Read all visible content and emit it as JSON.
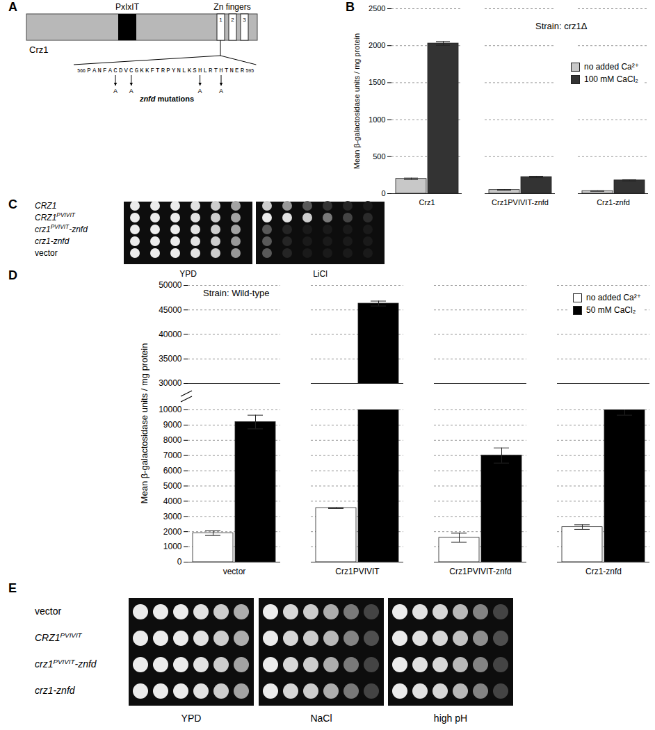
{
  "diagram": {
    "label": "A",
    "protein": "Crz1",
    "motif": "PxIxIT",
    "domain": "Zn fingers",
    "fingers": [
      "1",
      "2",
      "3"
    ],
    "sequence_start": 566,
    "sequence_end": 595,
    "sequence": "PANFACDVCGKKFTRPYNLKSHLRTHTNER",
    "mutated_positions": [
      571,
      574,
      587,
      591
    ],
    "substitution": "A",
    "mutation_label": "znfd mutations"
  },
  "chart_data": [
    {
      "panel": "B",
      "type": "bar",
      "annotations": [
        "Strain: crz1Δ"
      ],
      "ylabel": "Mean β-galactosidase units / mg protein",
      "categories": [
        "Crz1",
        "Crz1PVIVIT-znfd",
        "Crz1-znfd"
      ],
      "series": [
        {
          "name": "no added Ca²⁺",
          "color": "#c8c8c8",
          "values": [
            200,
            50,
            35
          ],
          "errors": [
            10,
            5,
            4
          ]
        },
        {
          "name": "100 mM CaCl₂",
          "color": "#333333",
          "values": [
            2030,
            225,
            180
          ],
          "errors": [
            25,
            10,
            8
          ]
        }
      ],
      "ylim": [
        0,
        2500
      ],
      "yticks": [
        0,
        500,
        1000,
        1500,
        2000,
        2500
      ],
      "grid": true,
      "legend": "top-right"
    },
    {
      "panel": "D",
      "type": "bar",
      "annotations": [
        "Strain: Wild-type"
      ],
      "ylabel": "Mean β-galactosidase units / mg protein",
      "categories": [
        "vector",
        "Crz1PVIVIT",
        "Crz1PVIVIT-znfd",
        "Crz1-znfd"
      ],
      "series": [
        {
          "name": "no added Ca²⁺",
          "color": "#ffffff",
          "values": [
            1900,
            3550,
            1600,
            2300
          ],
          "errors": [
            150,
            30,
            300,
            150
          ]
        },
        {
          "name": "50 mM CaCl₂",
          "color": "#000000",
          "values": [
            9200,
            46300,
            7000,
            10000
          ],
          "errors": [
            450,
            500,
            500,
            350
          ]
        }
      ],
      "ylim": [
        [
          0,
          10000
        ],
        [
          30000,
          50000
        ]
      ],
      "yticks": [
        0,
        1000,
        2000,
        3000,
        4000,
        5000,
        6000,
        7000,
        8000,
        9000,
        10000,
        30000,
        35000,
        40000,
        45000,
        50000
      ],
      "grid": true,
      "legend": "top-right"
    }
  ],
  "spot_assays": [
    {
      "label": "C",
      "strains": [
        "CRZ1",
        "CRZ1PVIVIT",
        "crz1PVIVIT-znfd",
        "crz1-znfd",
        "vector"
      ],
      "plates": [
        {
          "name": "YPD",
          "growth": [
            [
              1,
              1,
              1,
              0.95,
              0.85,
              0.65
            ],
            [
              1,
              1,
              1,
              0.95,
              0.85,
              0.65
            ],
            [
              1,
              1,
              1,
              0.95,
              0.85,
              0.65
            ],
            [
              1,
              1,
              1,
              0.95,
              0.85,
              0.6
            ],
            [
              1,
              1,
              1,
              0.95,
              0.85,
              0.6
            ]
          ]
        },
        {
          "name": "LiCl",
          "growth": [
            [
              0.85,
              0.6,
              0.3,
              0.12,
              0.05,
              0
            ],
            [
              1,
              0.95,
              0.85,
              0.45,
              0.2,
              0.08
            ],
            [
              0.3,
              0.05,
              0,
              0,
              0,
              0
            ],
            [
              0.3,
              0.05,
              0,
              0,
              0,
              0
            ],
            [
              0.3,
              0.05,
              0,
              0,
              0,
              0
            ]
          ]
        }
      ]
    },
    {
      "label": "E",
      "strains": [
        "vector",
        "CRZ1PVIVIT",
        "crz1PVIVIT-znfd",
        "crz1-znfd"
      ],
      "plates": [
        {
          "name": "YPD",
          "growth": [
            [
              1,
              1,
              1,
              0.95,
              0.85,
              0.7
            ],
            [
              1,
              1,
              1,
              0.95,
              0.85,
              0.7
            ],
            [
              1,
              1,
              1,
              0.95,
              0.85,
              0.65
            ],
            [
              1,
              1,
              1,
              0.95,
              0.85,
              0.65
            ]
          ]
        },
        {
          "name": "NaCl",
          "growth": [
            [
              1,
              0.9,
              0.85,
              0.7,
              0.45,
              0.2
            ],
            [
              1,
              0.9,
              0.85,
              0.75,
              0.5,
              0.25
            ],
            [
              1,
              0.9,
              0.85,
              0.7,
              0.45,
              0.2
            ],
            [
              1,
              0.9,
              0.85,
              0.7,
              0.45,
              0.2
            ]
          ]
        },
        {
          "name": "high pH",
          "growth": [
            [
              1,
              0.95,
              0.9,
              0.75,
              0.5,
              0.2
            ],
            [
              1,
              0.95,
              0.9,
              0.8,
              0.55,
              0.25
            ],
            [
              1,
              0.95,
              0.9,
              0.75,
              0.5,
              0.2
            ],
            [
              1,
              0.95,
              0.9,
              0.75,
              0.5,
              0.2
            ]
          ]
        }
      ]
    }
  ]
}
